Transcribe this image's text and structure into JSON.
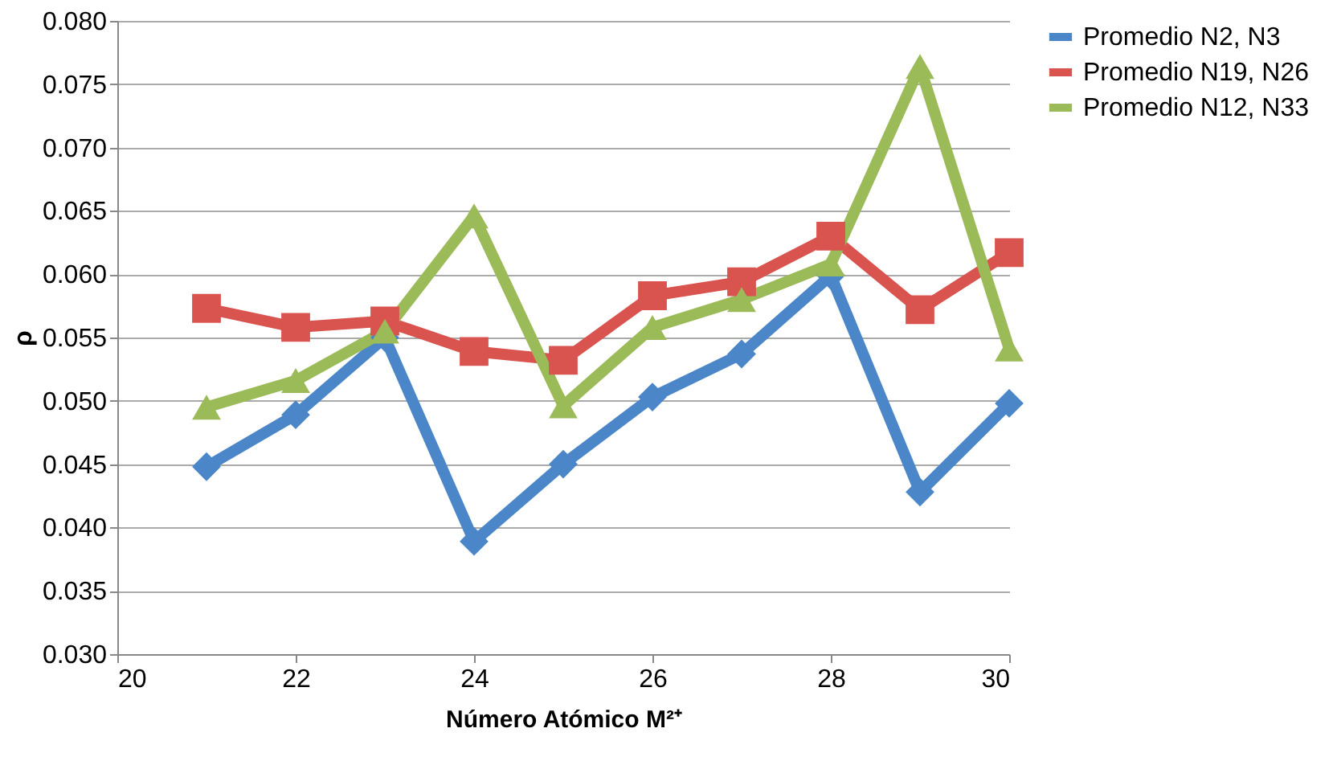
{
  "chart_data": {
    "type": "line",
    "xlabel": "Número Atómico M²⁺",
    "ylabel": "ρ",
    "x": [
      21,
      22,
      23,
      24,
      25,
      26,
      27,
      28,
      29,
      30
    ],
    "xlim": [
      20,
      30
    ],
    "xticks": [
      20,
      22,
      24,
      26,
      28,
      30
    ],
    "ylim": [
      0.03,
      0.08
    ],
    "yticks": [
      {
        "value": 0.03,
        "label": "0.030"
      },
      {
        "value": 0.035,
        "label": "0.035"
      },
      {
        "value": 0.04,
        "label": "0.040"
      },
      {
        "value": 0.045,
        "label": "0.045"
      },
      {
        "value": 0.05,
        "label": "0.050"
      },
      {
        "value": 0.055,
        "label": "0.055"
      },
      {
        "value": 0.06,
        "label": "0.060"
      },
      {
        "value": 0.065,
        "label": "0.065"
      },
      {
        "value": 0.07,
        "label": "0.070"
      },
      {
        "value": 0.075,
        "label": "0.075"
      },
      {
        "value": 0.08,
        "label": "0.080"
      }
    ],
    "grid": "y",
    "legend": "right",
    "line_style": "solid",
    "series": [
      {
        "name": "Promedio N2, N3",
        "color": "#4a86c8",
        "marker": "diamond",
        "values": [
          0.0448,
          0.0489,
          0.055,
          0.0389,
          0.045,
          0.0503,
          0.0537,
          0.0599,
          0.0428,
          0.0498
        ]
      },
      {
        "name": "Promedio N19, N26",
        "color": "#d9534f",
        "marker": "square",
        "values": [
          0.0573,
          0.0558,
          0.0563,
          0.0539,
          0.0532,
          0.0583,
          0.0594,
          0.063,
          0.0572,
          0.0617
        ]
      },
      {
        "name": "Promedio N12, N33",
        "color": "#9bbb59",
        "marker": "triangle",
        "values": [
          0.0495,
          0.0516,
          0.0555,
          0.0646,
          0.0496,
          0.0558,
          0.058,
          0.0608,
          0.0764,
          0.0541
        ]
      }
    ]
  }
}
